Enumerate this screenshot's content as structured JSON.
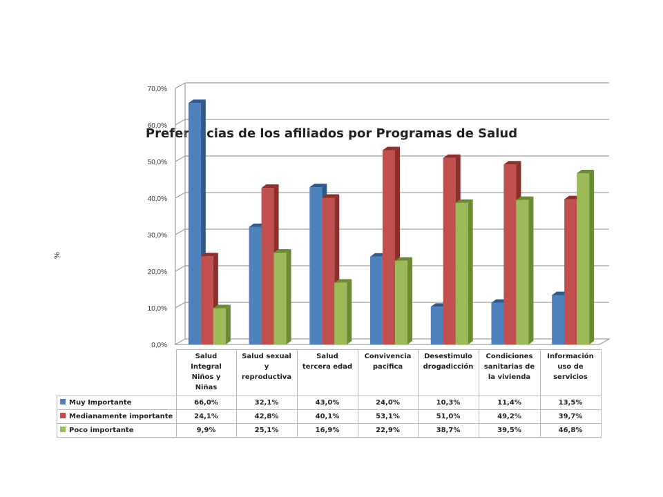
{
  "chart_data": {
    "type": "bar",
    "title": "Preferencias de los afiliados por Programas de Salud",
    "ylabel": "%",
    "ylim": [
      0,
      70
    ],
    "yticks": [
      "0,0%",
      "10,0%",
      "20,0%",
      "30,0%",
      "40,0%",
      "50,0%",
      "60,0%",
      "70,0%"
    ],
    "grid": true,
    "categories": [
      "Salud Integral Niños y Niñas",
      "Salud sexual y reproductiva",
      "Salud tercera edad",
      "Convivencia pacifica",
      "Desestimulo drogadicción",
      "Condiciones sanitarias de la vivienda",
      "Información uso de servicios"
    ],
    "category_lines": [
      [
        "Salud",
        "Integral",
        "Niños y",
        "Niñas"
      ],
      [
        "Salud sexual",
        "y",
        "reproductiva"
      ],
      [
        "Salud",
        "tercera edad"
      ],
      [
        "Convivencia",
        "pacifica"
      ],
      [
        "Desestimulo",
        "drogadicción"
      ],
      [
        "Condiciones",
        "sanitarias de",
        "la vivienda"
      ],
      [
        "Información",
        "uso de",
        "servicios"
      ]
    ],
    "series": [
      {
        "name": "Muy Importante",
        "color": "#4f81bd",
        "side": "#2e5a8e",
        "values": [
          66.0,
          32.1,
          43.0,
          24.0,
          10.3,
          11.4,
          13.5
        ],
        "labels": [
          "66,0%",
          "32,1%",
          "43,0%",
          "24,0%",
          "10,3%",
          "11,4%",
          "13,5%"
        ]
      },
      {
        "name": "Medianamente importante",
        "color": "#c0504d",
        "side": "#8c2f2c",
        "values": [
          24.1,
          42.8,
          40.1,
          53.1,
          51.0,
          49.2,
          39.7
        ],
        "labels": [
          "24,1%",
          "42,8%",
          "40,1%",
          "53,1%",
          "51,0%",
          "49,2%",
          "39,7%"
        ]
      },
      {
        "name": "Poco importante",
        "color": "#9bbb59",
        "side": "#6b8a34",
        "values": [
          9.9,
          25.1,
          16.9,
          22.9,
          38.7,
          39.5,
          46.8
        ],
        "labels": [
          "9,9%",
          "25,1%",
          "16,9%",
          "22,9%",
          "38,7%",
          "39,5%",
          "46,8%"
        ]
      }
    ]
  }
}
